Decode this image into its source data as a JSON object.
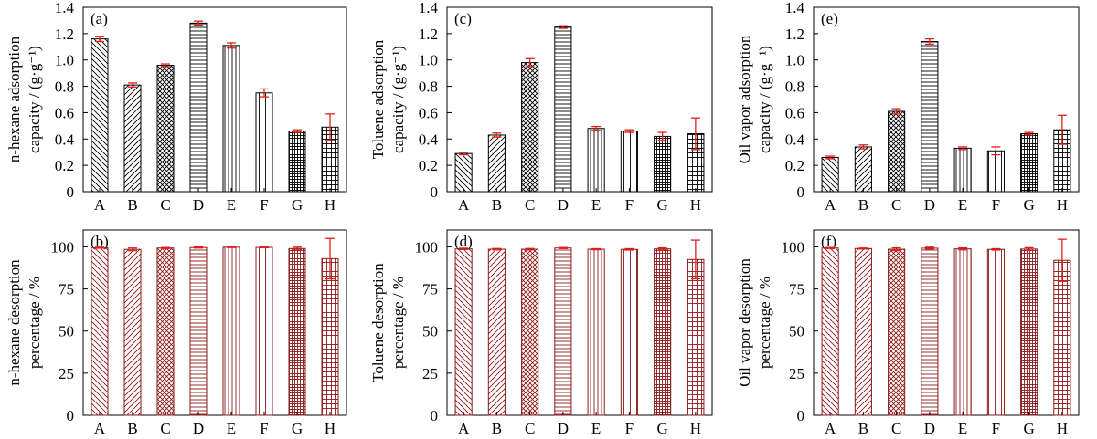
{
  "colors": {
    "top_bar_stroke": "#000000",
    "bottom_bar_stroke": "#8b1a1a",
    "error_bar": "#e0201b",
    "frame": "#000000"
  },
  "chart_data": [
    {
      "type": "bar",
      "panel_label": "(a)",
      "ylabel": [
        "n-hexane adsorption",
        "capacity / (g·g⁻¹)"
      ],
      "categories": [
        "A",
        "B",
        "C",
        "D",
        "E",
        "F",
        "G",
        "H"
      ],
      "values": [
        1.16,
        0.81,
        0.96,
        1.28,
        1.11,
        0.75,
        0.46,
        0.49
      ],
      "errors": [
        0.02,
        0.015,
        0.01,
        0.015,
        0.02,
        0.03,
        0.01,
        0.1
      ],
      "ylim": [
        0,
        1.4
      ],
      "yticks": [
        0,
        0.2,
        0.4,
        0.6,
        0.8,
        1.0,
        1.2,
        1.4
      ],
      "ytick_labels": [
        "0",
        "0.2",
        "0.4",
        "0.6",
        "0.8",
        "1.0",
        "1.2",
        "1.4"
      ],
      "patterns": [
        "diag-back",
        "diag-fwd",
        "cross",
        "hlines",
        "vlines",
        "vsparse",
        "grid-dense",
        "grid"
      ]
    },
    {
      "type": "bar",
      "panel_label": "(c)",
      "ylabel": [
        "Toluene adsorption",
        "capacity / (g·g⁻¹)"
      ],
      "categories": [
        "A",
        "B",
        "C",
        "D",
        "E",
        "F",
        "G",
        "H"
      ],
      "values": [
        0.29,
        0.43,
        0.98,
        1.25,
        0.48,
        0.46,
        0.42,
        0.44
      ],
      "errors": [
        0.01,
        0.015,
        0.03,
        0.01,
        0.015,
        0.01,
        0.03,
        0.12
      ],
      "ylim": [
        0,
        1.4
      ],
      "yticks": [
        0,
        0.2,
        0.4,
        0.6,
        0.8,
        1.0,
        1.2,
        1.4
      ],
      "ytick_labels": [
        "0",
        "0.2",
        "0.4",
        "0.6",
        "0.8",
        "1.0",
        "1.2",
        "1.4"
      ],
      "patterns": [
        "diag-back",
        "diag-fwd",
        "cross",
        "hlines",
        "vlines",
        "vsparse",
        "grid-dense",
        "grid"
      ]
    },
    {
      "type": "bar",
      "panel_label": "(e)",
      "ylabel": [
        "Oil vapor adsorption",
        "capacity / (g·g⁻¹)"
      ],
      "categories": [
        "A",
        "B",
        "C",
        "D",
        "E",
        "F",
        "G",
        "H"
      ],
      "values": [
        0.26,
        0.34,
        0.61,
        1.14,
        0.33,
        0.31,
        0.44,
        0.47
      ],
      "errors": [
        0.01,
        0.015,
        0.02,
        0.02,
        0.01,
        0.03,
        0.01,
        0.11
      ],
      "ylim": [
        0,
        1.4
      ],
      "yticks": [
        0,
        0.2,
        0.4,
        0.6,
        0.8,
        1.0,
        1.2,
        1.4
      ],
      "ytick_labels": [
        "0",
        "0.2",
        "0.4",
        "0.6",
        "0.8",
        "1.0",
        "1.2",
        "1.4"
      ],
      "patterns": [
        "diag-back",
        "diag-fwd",
        "cross",
        "hlines",
        "vlines",
        "vsparse",
        "grid-dense",
        "grid"
      ]
    },
    {
      "type": "bar",
      "panel_label": "(b)",
      "ylabel": [
        "n-hexane desorption",
        "percentage / %"
      ],
      "categories": [
        "A",
        "B",
        "C",
        "D",
        "E",
        "F",
        "G",
        "H"
      ],
      "values": [
        99.5,
        98.5,
        99.3,
        99.6,
        99.8,
        99.7,
        99.0,
        93.0
      ],
      "errors": [
        0.3,
        0.8,
        0.3,
        0.3,
        0.2,
        0.2,
        0.8,
        12.0
      ],
      "ylim": [
        0,
        110
      ],
      "yticks": [
        0,
        25,
        50,
        75,
        100
      ],
      "ytick_labels": [
        "0",
        "25",
        "50",
        "75",
        "100"
      ],
      "patterns": [
        "diag-back",
        "diag-fwd",
        "cross",
        "hlines",
        "vlines",
        "vsparse",
        "grid-dense",
        "grid"
      ]
    },
    {
      "type": "bar",
      "panel_label": "(d)",
      "ylabel": [
        "Toluene desorption",
        "percentage / %"
      ],
      "categories": [
        "A",
        "B",
        "C",
        "D",
        "E",
        "F",
        "G",
        "H"
      ],
      "values": [
        98.8,
        98.6,
        98.6,
        99.3,
        98.6,
        98.5,
        98.8,
        92.5
      ],
      "errors": [
        0.4,
        0.4,
        0.4,
        0.3,
        0.3,
        0.4,
        0.6,
        11.5
      ],
      "ylim": [
        0,
        110
      ],
      "yticks": [
        0,
        25,
        50,
        75,
        100
      ],
      "ytick_labels": [
        "0",
        "25",
        "50",
        "75",
        "100"
      ],
      "patterns": [
        "diag-back",
        "diag-fwd",
        "cross",
        "hlines",
        "vlines",
        "vsparse",
        "grid-dense",
        "grid"
      ]
    },
    {
      "type": "bar",
      "panel_label": "(f)",
      "ylabel": [
        "Oil vapor desorption",
        "percentage / %"
      ],
      "categories": [
        "A",
        "B",
        "C",
        "D",
        "E",
        "F",
        "G",
        "H"
      ],
      "values": [
        99.3,
        99.0,
        98.6,
        99.2,
        98.8,
        98.5,
        98.7,
        92.0
      ],
      "errors": [
        0.3,
        0.3,
        0.8,
        0.6,
        0.6,
        0.4,
        0.8,
        12.5
      ],
      "ylim": [
        0,
        110
      ],
      "yticks": [
        0,
        25,
        50,
        75,
        100
      ],
      "ytick_labels": [
        "0",
        "25",
        "50",
        "75",
        "100"
      ],
      "patterns": [
        "diag-back",
        "diag-fwd",
        "cross",
        "hlines",
        "vlines",
        "vsparse",
        "grid-dense",
        "grid"
      ]
    }
  ]
}
